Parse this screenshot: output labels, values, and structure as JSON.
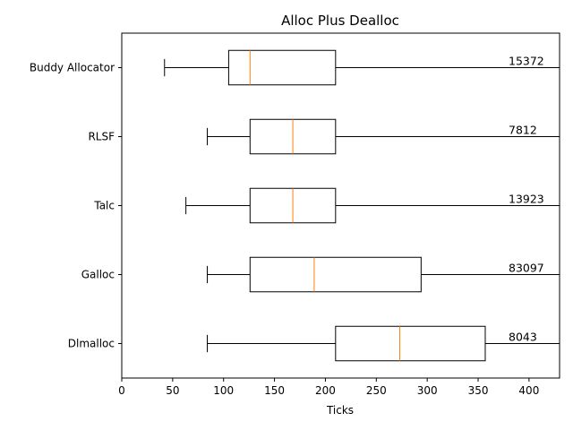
{
  "chart_data": {
    "type": "boxplot",
    "orientation": "horizontal",
    "title": "Alloc Plus Dealloc",
    "xlabel": "Ticks",
    "ylabel": "",
    "xlim": [
      0,
      430
    ],
    "xticks": [
      0,
      50,
      100,
      150,
      200,
      250,
      300,
      350,
      400
    ],
    "categories": [
      "Dlmalloc",
      "Galloc",
      "Talc",
      "RLSF",
      "Buddy Allocator"
    ],
    "boxes": [
      {
        "name": "Dlmalloc",
        "whisker_low": 84,
        "q1": 210,
        "median": 273,
        "q3": 357,
        "whisker_high": 430,
        "annotation": "8043"
      },
      {
        "name": "Galloc",
        "whisker_low": 84,
        "q1": 126,
        "median": 189,
        "q3": 294,
        "whisker_high": 430,
        "annotation": "83097"
      },
      {
        "name": "Talc",
        "whisker_low": 63,
        "q1": 126,
        "median": 168,
        "q3": 210,
        "whisker_high": 430,
        "annotation": "13923"
      },
      {
        "name": "RLSF",
        "whisker_low": 84,
        "q1": 126,
        "median": 168,
        "q3": 210,
        "whisker_high": 430,
        "annotation": "7812"
      },
      {
        "name": "Buddy Allocator",
        "whisker_low": 42,
        "q1": 105,
        "median": 126,
        "q3": 210,
        "whisker_high": 430,
        "annotation": "15372"
      }
    ],
    "colors": {
      "box": "#000000",
      "median": "#ff7f0e"
    }
  }
}
